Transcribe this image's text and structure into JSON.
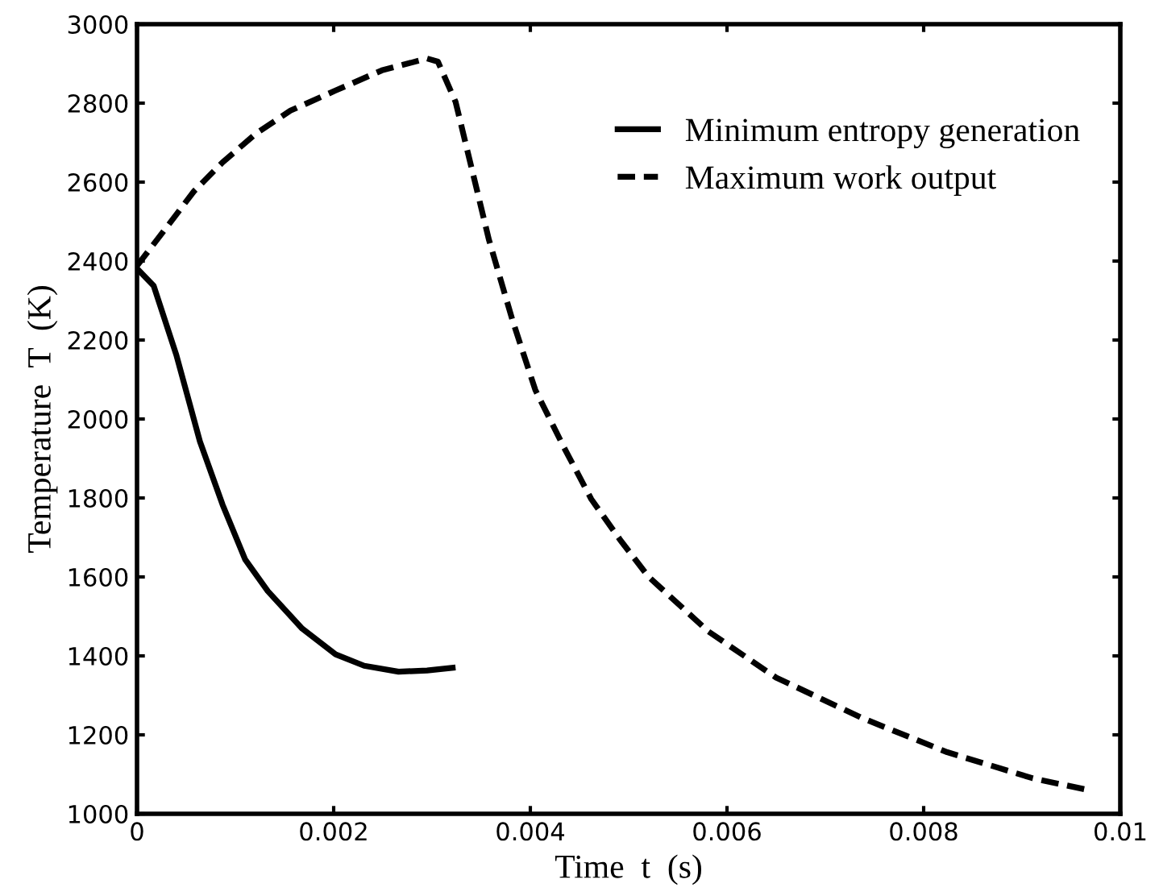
{
  "chart_data": {
    "type": "line",
    "xlabel": "Time  t  (s)",
    "ylabel": "Temperature  T  (K)",
    "xlim": [
      0,
      0.01
    ],
    "xticks": [
      0,
      0.002,
      0.004,
      0.006,
      0.008,
      0.01
    ],
    "ylim": [
      1000,
      3000
    ],
    "yticks": [
      1000,
      1200,
      1400,
      1600,
      1800,
      2000,
      2200,
      2400,
      2600,
      2800,
      3000
    ],
    "grid": false,
    "legend": "top right",
    "marker": "none",
    "series": [
      {
        "name": "Minimum entropy generation",
        "color": "#000000",
        "line_style": "solid",
        "x": [
          0,
          0.00017,
          0.0004,
          0.00064,
          0.00087,
          0.0011,
          0.00133,
          0.00168,
          0.00202,
          0.00231,
          0.00266,
          0.00295,
          0.00321
        ],
        "values": [
          2381,
          2337,
          2162,
          1943,
          1783,
          1644,
          1564,
          1469,
          1404,
          1375,
          1360,
          1363,
          1370
        ]
      },
      {
        "name": "Maximum work output",
        "color": "#000000",
        "line_style": "dashed",
        "x": [
          0,
          0.00029,
          0.00058,
          0.00087,
          0.00121,
          0.00156,
          0.00202,
          0.00249,
          0.00295,
          0.00306,
          0.00324,
          0.00341,
          0.00358,
          0.00382,
          0.00405,
          0.00434,
          0.00462,
          0.00491,
          0.0052,
          0.00581,
          0.0065,
          0.00737,
          0.00824,
          0.00911,
          0.00966
        ],
        "values": [
          2388,
          2482,
          2577,
          2650,
          2723,
          2781,
          2832,
          2883,
          2913,
          2905,
          2803,
          2628,
          2453,
          2249,
          2074,
          1929,
          1797,
          1695,
          1601,
          1462,
          1345,
          1243,
          1156,
          1090,
          1061
        ]
      }
    ]
  }
}
